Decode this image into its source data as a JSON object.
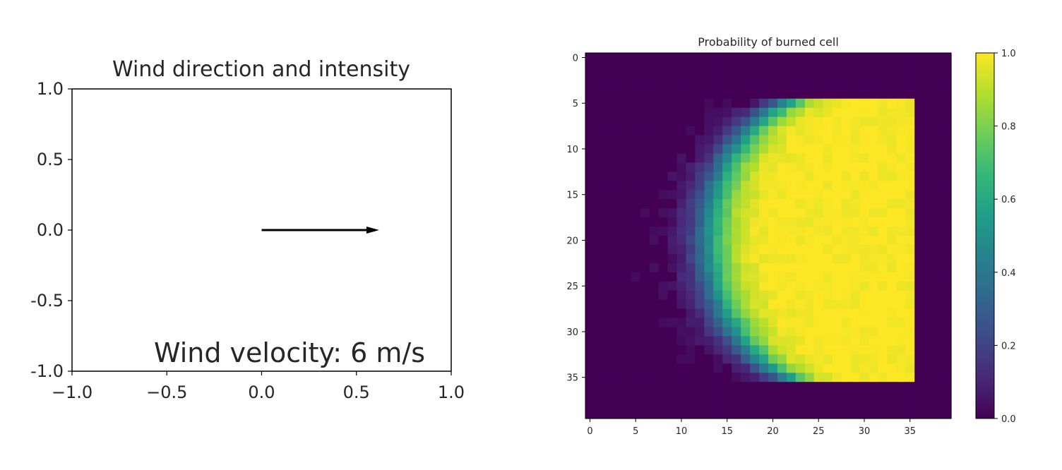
{
  "chart_data": [
    {
      "type": "quiver",
      "title": "Wind direction and intensity",
      "xlim": [
        -1.0,
        1.0
      ],
      "ylim": [
        -1.0,
        1.0
      ],
      "xticks": [
        "−1.0",
        "−0.5",
        "0.0",
        "0.5",
        "1.0"
      ],
      "xtick_values": [
        -1.0,
        -0.5,
        0.0,
        0.5,
        1.0
      ],
      "yticks": [
        "1.0",
        "0.5",
        "0.0",
        "-0.5",
        "-1.0"
      ],
      "ytick_values": [
        1.0,
        0.5,
        0.0,
        -0.5,
        -1.0
      ],
      "arrow": {
        "x": 0.0,
        "y": 0.0,
        "u": 0.62,
        "v": 0.0,
        "color": "#000000"
      },
      "annotation": {
        "text": "Wind velocity: 6 m/s",
        "color": "#3a8a2a"
      },
      "grid": false
    },
    {
      "type": "heatmap",
      "title": "Probability of burned cell",
      "grid_size": [
        40,
        40
      ],
      "burned_region": {
        "rows": [
          5,
          35
        ],
        "cols": [
          0,
          35
        ]
      },
      "front_center": {
        "row": 20,
        "col": 26
      },
      "front_radius_x": 13,
      "front_radius_y": 16,
      "front_softness": 3.2,
      "xticks": [
        0,
        5,
        10,
        15,
        20,
        25,
        30,
        35
      ],
      "yticks": [
        0,
        5,
        10,
        15,
        20,
        25,
        30,
        35
      ],
      "colorbar": {
        "ticks": [
          "0.0",
          "0.2",
          "0.4",
          "0.6",
          "0.8",
          "1.0"
        ],
        "tick_values": [
          0.0,
          0.2,
          0.4,
          0.6,
          0.8,
          1.0
        ],
        "colormap": "viridis"
      },
      "vmin": 0.0,
      "vmax": 1.0
    }
  ]
}
